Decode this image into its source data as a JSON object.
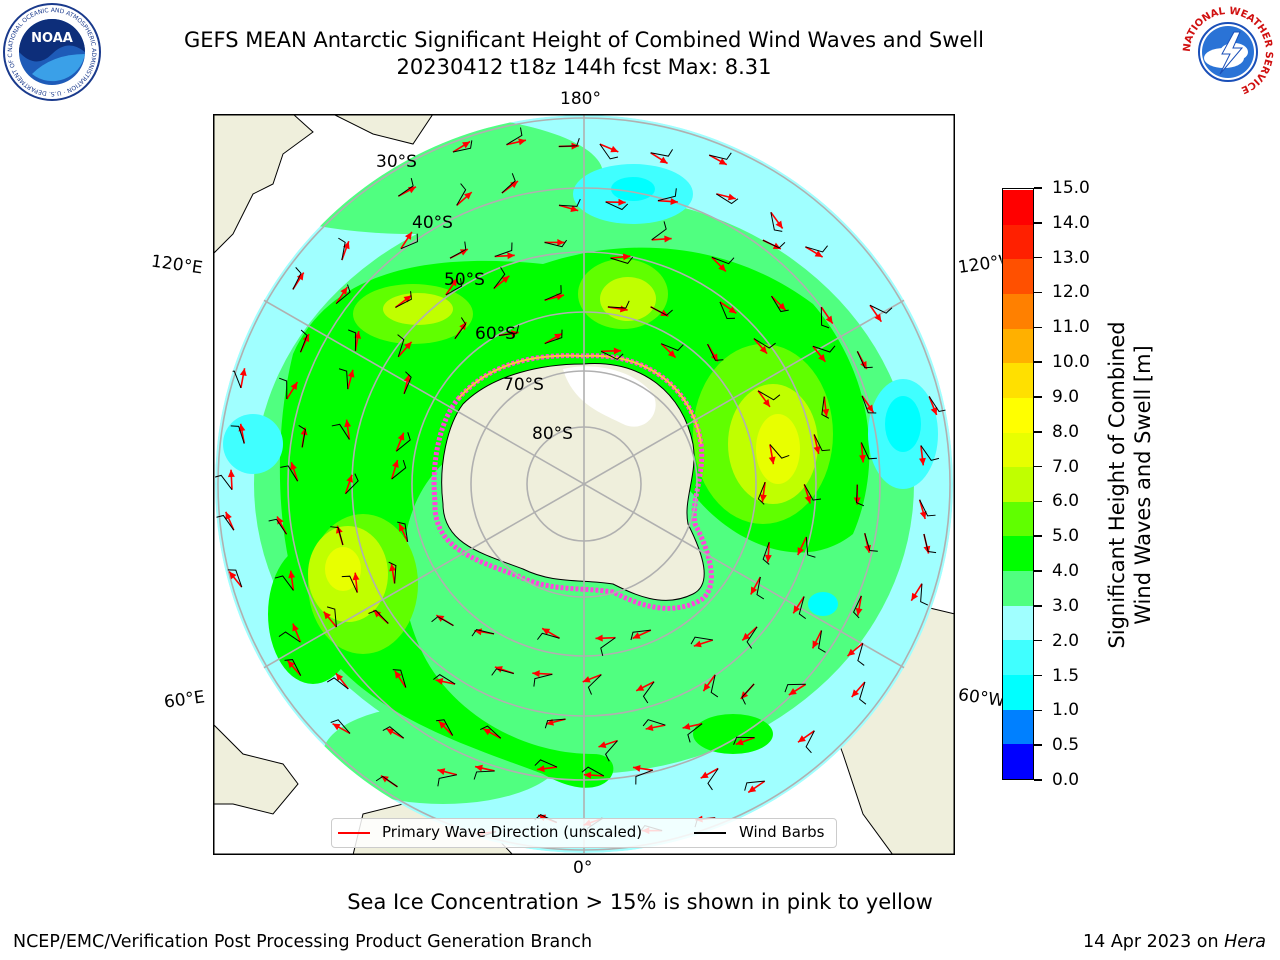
{
  "title_line1": "GEFS MEAN Antarctic Significant Height of Combined Wind Waves and Swell",
  "title_line2": "20230412 t18z 144h fcst   Max: 8.31",
  "longitude_labels": {
    "top": "180°",
    "left_upper": "120°E",
    "right_upper": "120°W",
    "left_lower": "60°E",
    "right_lower": "60°W",
    "bottom": "0°"
  },
  "latitude_labels": [
    "30°S",
    "40°S",
    "50°S",
    "60°S",
    "70°S",
    "80°S"
  ],
  "colorbar": {
    "title_line1": "Significant Height of Combined",
    "title_line2": "Wind Waves and Swell [m]",
    "tick_labels": [
      "0.0",
      "0.5",
      "1.0",
      "1.5",
      "2.0",
      "3.0",
      "4.0",
      "5.0",
      "6.0",
      "7.0",
      "8.0",
      "9.0",
      "10.0",
      "11.0",
      "12.0",
      "13.0",
      "14.0",
      "15.0"
    ],
    "colors": [
      "#0000ff",
      "#0080ff",
      "#00ffff",
      "#40ffff",
      "#a0ffff",
      "#50ff80",
      "#00ff00",
      "#60ff00",
      "#c0ff00",
      "#e8ff00",
      "#ffff00",
      "#ffe000",
      "#ffb000",
      "#ff8000",
      "#ff5000",
      "#ff2000",
      "#ff0000"
    ]
  },
  "legend": {
    "wave_label": "Primary Wave Direction (unscaled)",
    "wave_color": "#ff0000",
    "wind_label": "Wind Barbs",
    "wind_color": "#000000"
  },
  "sea_ice_note": "Sea Ice Concentration > 15% is shown in pink to yellow",
  "footer_left": "NCEP/EMC/Verification Post Processing Product Generation Branch",
  "footer_date": "14 Apr 2023 on ",
  "footer_host": "Hera",
  "logos": {
    "noaa": {
      "text": "NOAA",
      "ring_text": "NATIONAL OCEANIC AND ATMOSPHERIC ADMINISTRATION · U.S. DEPARTMENT OF COMMERCE"
    },
    "nws": {
      "ring_text": "NATIONAL WEATHER SERVICE"
    }
  }
}
